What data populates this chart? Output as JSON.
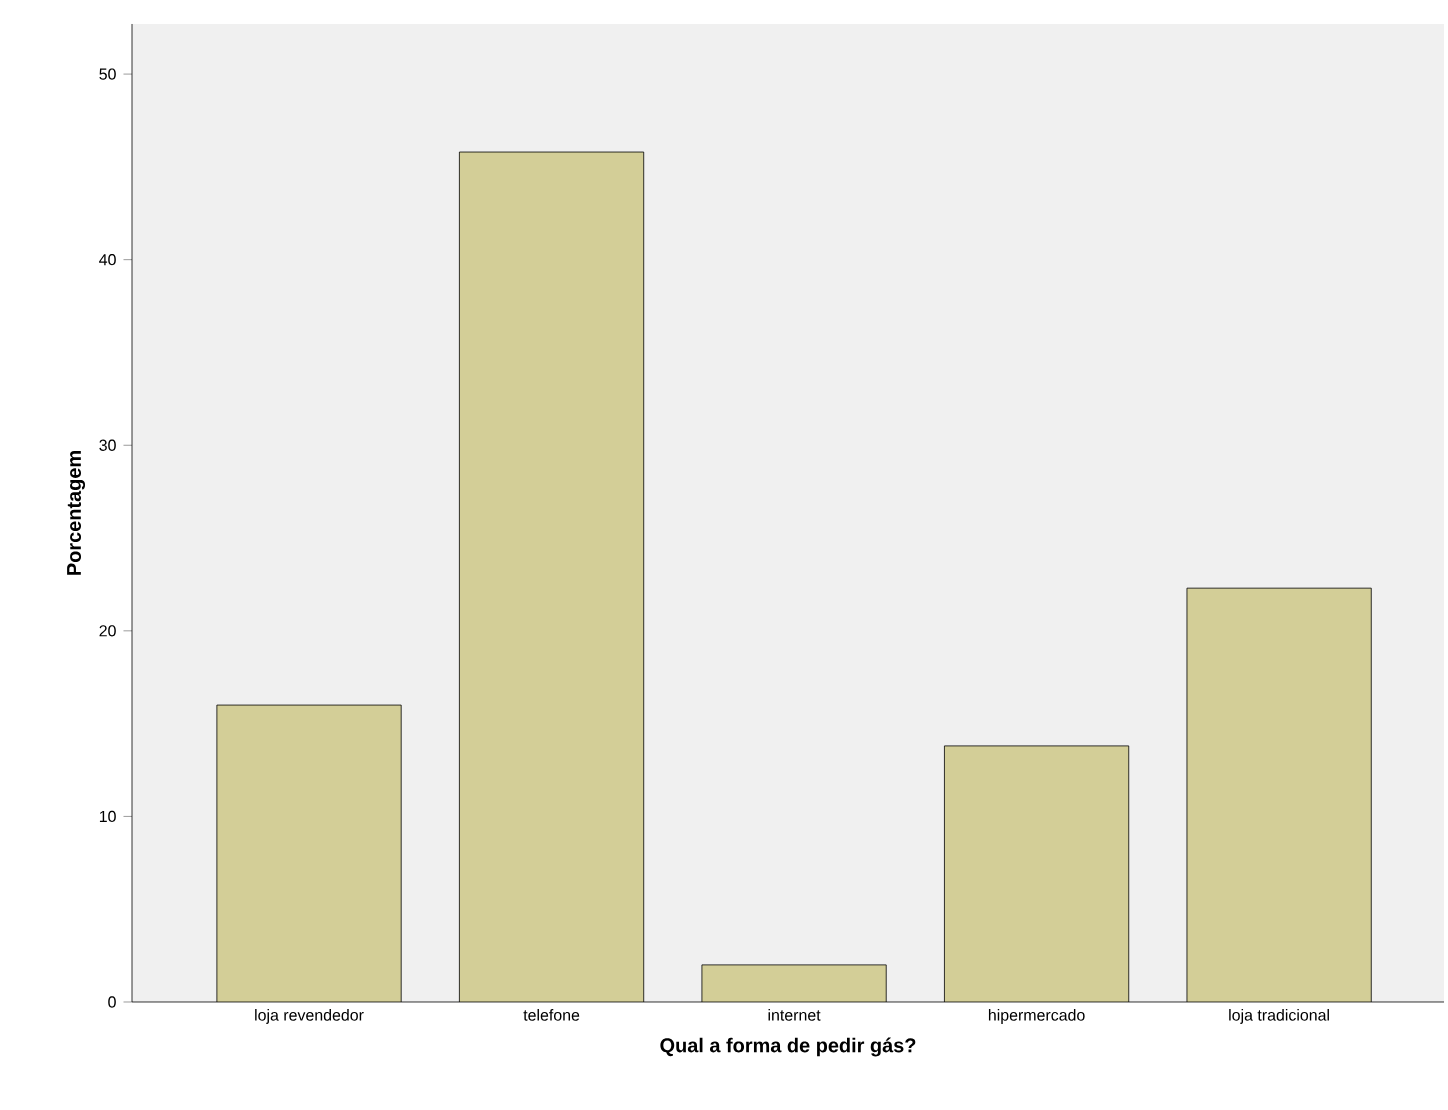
{
  "chart_data": {
    "type": "bar",
    "xlabel": "Qual a forma de pedir gás?",
    "ylabel": "Porcentagem",
    "categories": [
      "loja revendedor",
      "telefone",
      "internet",
      "hipermercado",
      "loja tradicional"
    ],
    "values": [
      16.0,
      45.8,
      2.0,
      13.8,
      22.3
    ],
    "color": "#d3ce97",
    "ylim": [
      0,
      52.7
    ],
    "yticks": [
      0,
      10,
      20,
      30,
      40,
      50
    ]
  }
}
